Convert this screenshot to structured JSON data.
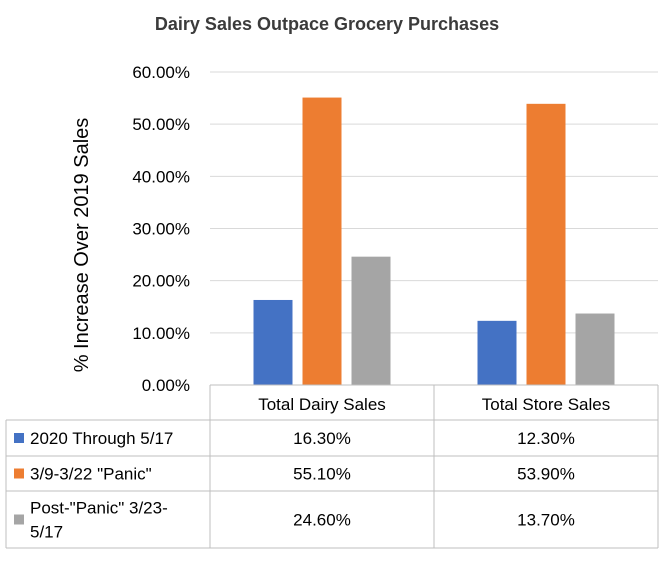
{
  "chart_data": {
    "type": "bar",
    "title": "Dairy Sales Outpace Grocery Purchases",
    "ylabel": "% Increase Over 2019 Sales",
    "xlabel": "",
    "ylim": [
      0,
      60
    ],
    "yticks": [
      "0.00%",
      "10.00%",
      "20.00%",
      "30.00%",
      "40.00%",
      "50.00%",
      "60.00%"
    ],
    "ytick_values": [
      0,
      10,
      20,
      30,
      40,
      50,
      60
    ],
    "grid": true,
    "legend": "data-table",
    "categories": [
      "Total Dairy Sales",
      "Total Store Sales"
    ],
    "series": [
      {
        "name": "2020 Through 5/17",
        "name_lines": [
          "2020 Through 5/17"
        ],
        "color": "#4472c4",
        "values": [
          16.3,
          12.3
        ],
        "labels": [
          "16.30%",
          "12.30%"
        ]
      },
      {
        "name": "3/9-3/22 \"Panic\"",
        "name_lines": [
          "3/9-3/22 \"Panic\""
        ],
        "color": "#ed7d31",
        "values": [
          55.1,
          53.9
        ],
        "labels": [
          "55.10%",
          "53.90%"
        ]
      },
      {
        "name": "Post-\"Panic\" 3/23-5/17",
        "name_lines": [
          "Post-\"Panic\" 3/23-",
          "5/17"
        ],
        "color": "#a5a5a5",
        "values": [
          24.6,
          13.7
        ],
        "labels": [
          "24.60%",
          "13.70%"
        ]
      }
    ]
  }
}
